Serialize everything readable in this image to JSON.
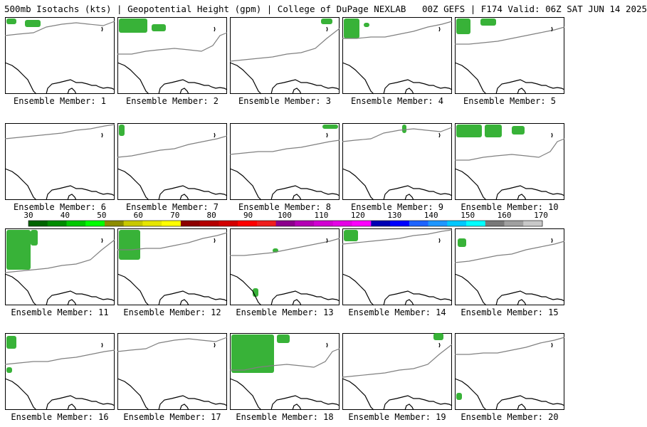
{
  "header": {
    "title": "500mb Isotachs (kts) | Geopotential Height (gpm) | College of DuPage NEXLAB   00Z GEFS | F174 Valid: 06Z SAT JUN 14 2025"
  },
  "members": [
    {
      "label": "Ensemble Member: 1"
    },
    {
      "label": "Ensemble Member: 2"
    },
    {
      "label": "Ensemble Member: 3"
    },
    {
      "label": "Ensemble Member: 4"
    },
    {
      "label": "Ensemble Member: 5"
    },
    {
      "label": "Ensemble Member: 6"
    },
    {
      "label": "Ensemble Member: 7"
    },
    {
      "label": "Ensemble Member: 8"
    },
    {
      "label": "Ensemble Member: 9"
    },
    {
      "label": "Ensemble Member: 10"
    },
    {
      "label": "Ensemble Member: 11"
    },
    {
      "label": "Ensemble Member: 12"
    },
    {
      "label": "Ensemble Member: 13"
    },
    {
      "label": "Ensemble Member: 14"
    },
    {
      "label": "Ensemble Member: 15"
    },
    {
      "label": "Ensemble Member: 16"
    },
    {
      "label": "Ensemble Member: 17"
    },
    {
      "label": "Ensemble Member: 18"
    },
    {
      "label": "Ensemble Member: 19"
    },
    {
      "label": "Ensemble Member: 20"
    }
  ],
  "colorbar": {
    "labels": [
      "30",
      "40",
      "50",
      "60",
      "70",
      "80",
      "90",
      "100",
      "110",
      "120",
      "130",
      "140",
      "150",
      "160",
      "170"
    ],
    "colors": [
      "#006400",
      "#008c00",
      "#00c800",
      "#00ff00",
      "#8c8c00",
      "#c8c800",
      "#e6e600",
      "#ffff00",
      "#8c0000",
      "#b40000",
      "#d20000",
      "#ff0000",
      "#f01e1e",
      "#8c008c",
      "#b400b4",
      "#d200d2",
      "#e600e6",
      "#ff00ff",
      "#0000b4",
      "#0000ff",
      "#1e64ff",
      "#1e96ff",
      "#00c8ff",
      "#00ffff",
      "#787878",
      "#a0a0a0",
      "#c8c8c8"
    ]
  }
}
